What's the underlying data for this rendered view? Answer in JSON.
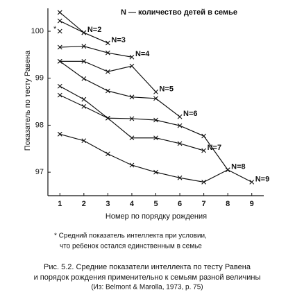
{
  "chart_data": {
    "type": "line",
    "legend_text": "N — количество детей в семье",
    "y_label": "Показатель по тесту Равена",
    "x_label": "Номер по порядку рождения",
    "footnote": [
      "* Средний показатель интеллекта при условии,",
      "что ребенок остался единственным в семье"
    ],
    "caption": [
      "Рис. 5.2. Средние показатели интеллекта по тесту Равена",
      "и порядок рождения применительно к семьям разной величины",
      "(Из: Belmont & Marolla, 1973, p. 75)"
    ],
    "xlim": [
      0.5,
      9.5
    ],
    "xticks": [
      1,
      2,
      3,
      4,
      5,
      6,
      7,
      8,
      9
    ],
    "ylim": [
      96.5,
      100.6
    ],
    "yticks": [
      97,
      98,
      99,
      100
    ],
    "color": "#111111",
    "series": [
      {
        "name": "*",
        "x": [
          1
        ],
        "values": [
          100.0
        ]
      },
      {
        "name": "N=2",
        "x": [
          1,
          2
        ],
        "values": [
          100.4,
          99.97
        ]
      },
      {
        "name": "N=3",
        "x": [
          1,
          2,
          3
        ],
        "values": [
          100.22,
          99.97,
          99.75
        ]
      },
      {
        "name": "N=4",
        "x": [
          1,
          2,
          3,
          4
        ],
        "values": [
          99.66,
          99.68,
          99.54,
          99.45
        ]
      },
      {
        "name": "N=5",
        "x": [
          1,
          2,
          3,
          4,
          5
        ],
        "values": [
          99.36,
          99.36,
          99.14,
          99.26,
          98.71
        ]
      },
      {
        "name": "N=6",
        "x": [
          1,
          2,
          3,
          4,
          5,
          6
        ],
        "values": [
          99.36,
          98.99,
          98.73,
          98.6,
          98.57,
          98.18
        ]
      },
      {
        "name": "N=7",
        "x": [
          1,
          2,
          3,
          4,
          5,
          6,
          7
        ],
        "values": [
          98.83,
          98.55,
          98.15,
          97.73,
          97.73,
          97.61,
          97.46
        ]
      },
      {
        "name": "N=8",
        "x": [
          1,
          2,
          3,
          4,
          5,
          6,
          7,
          8
        ],
        "values": [
          98.64,
          98.4,
          98.15,
          98.14,
          98.11,
          97.99,
          97.77,
          97.05
        ]
      },
      {
        "name": "N=9",
        "x": [
          1,
          2,
          3,
          4,
          5,
          6,
          7,
          8,
          9
        ],
        "values": [
          97.81,
          97.67,
          97.39,
          97.15,
          97.0,
          96.88,
          96.79,
          97.05,
          96.79
        ]
      }
    ]
  }
}
